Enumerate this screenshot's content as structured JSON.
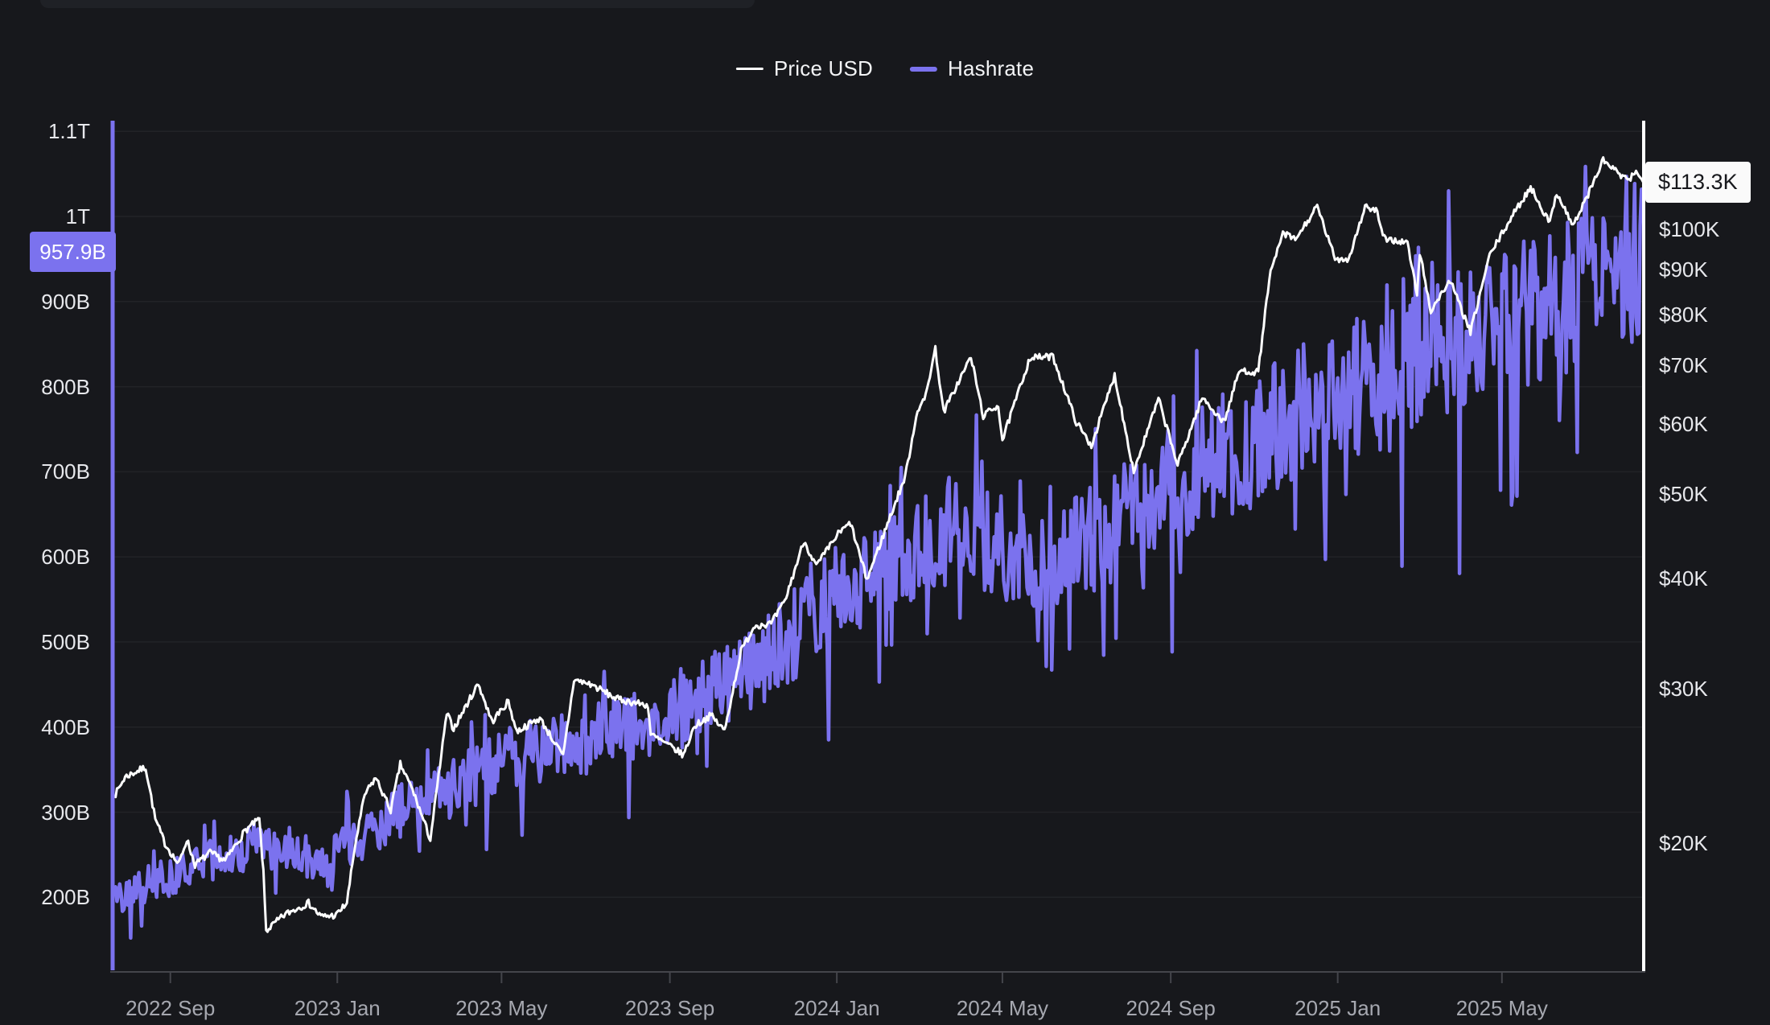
{
  "page": {
    "background": "#17181c",
    "top_strip_color": "#1f2126"
  },
  "legend": {
    "items": [
      {
        "label": "Price USD",
        "color": "#ffffff"
      },
      {
        "label": "Hashrate",
        "color": "#7b72ee"
      }
    ]
  },
  "chart_data": {
    "type": "line",
    "title": "",
    "x_axis": {
      "start": "2022-07-22",
      "end": "2025-08-12",
      "ticks": [
        {
          "label": "2022 Sep",
          "date": "2022-09-01"
        },
        {
          "label": "2023 Jan",
          "date": "2023-01-01"
        },
        {
          "label": "2023 May",
          "date": "2023-05-01"
        },
        {
          "label": "2023 Sep",
          "date": "2023-09-01"
        },
        {
          "label": "2024 Jan",
          "date": "2024-01-01"
        },
        {
          "label": "2024 May",
          "date": "2024-05-01"
        },
        {
          "label": "2024 Sep",
          "date": "2024-09-01"
        },
        {
          "label": "2025 Jan",
          "date": "2025-01-01"
        },
        {
          "label": "2025 May",
          "date": "2025-05-01"
        }
      ]
    },
    "left_axis": {
      "series": "Hashrate",
      "scale": "linear",
      "unit": "GH/s",
      "ticks": [
        {
          "label": "1.1T",
          "value": 1100
        },
        {
          "label": "1T",
          "value": 1000
        },
        {
          "label": "900B",
          "value": 900
        },
        {
          "label": "800B",
          "value": 800
        },
        {
          "label": "700B",
          "value": 700
        },
        {
          "label": "600B",
          "value": 600
        },
        {
          "label": "500B",
          "value": 500
        },
        {
          "label": "400B",
          "value": 400
        },
        {
          "label": "300B",
          "value": 300
        },
        {
          "label": "200B",
          "value": 200
        }
      ],
      "badge": {
        "label": "957.9B",
        "value": 957.9,
        "color": "#7b72ee"
      }
    },
    "right_axis": {
      "series": "Price USD",
      "scale": "log",
      "unit": "USD",
      "ticks": [
        {
          "label": "$100K",
          "value": 100000
        },
        {
          "label": "$90K",
          "value": 90000
        },
        {
          "label": "$80K",
          "value": 80000
        },
        {
          "label": "$70K",
          "value": 70000
        },
        {
          "label": "$60K",
          "value": 60000
        },
        {
          "label": "$50K",
          "value": 50000
        },
        {
          "label": "$40K",
          "value": 40000
        },
        {
          "label": "$30K",
          "value": 30000
        },
        {
          "label": "$20K",
          "value": 20000
        }
      ],
      "badge": {
        "label": "$113.3K",
        "value": 113300,
        "color": "#fafafa"
      }
    },
    "series": [
      {
        "name": "Price USD",
        "color": "#ffffff",
        "axis": "right",
        "stroke_width": 3,
        "jitter_pct": 0.9,
        "seed": 7,
        "points": [
          [
            "2022-07-22",
            22600
          ],
          [
            "2022-07-30",
            23800
          ],
          [
            "2022-08-14",
            24400
          ],
          [
            "2022-08-21",
            21300
          ],
          [
            "2022-08-28",
            20000
          ],
          [
            "2022-09-07",
            18900
          ],
          [
            "2022-09-13",
            20200
          ],
          [
            "2022-09-19",
            18900
          ],
          [
            "2022-09-30",
            19500
          ],
          [
            "2022-10-11",
            19100
          ],
          [
            "2022-10-26",
            20700
          ],
          [
            "2022-11-05",
            21300
          ],
          [
            "2022-11-08",
            18500
          ],
          [
            "2022-11-10",
            15900
          ],
          [
            "2022-11-24",
            16600
          ],
          [
            "2022-12-11",
            17100
          ],
          [
            "2022-12-20",
            16500
          ],
          [
            "2022-12-31",
            16550
          ],
          [
            "2023-01-08",
            17100
          ],
          [
            "2023-01-14",
            19900
          ],
          [
            "2023-01-21",
            22700
          ],
          [
            "2023-01-29",
            23750
          ],
          [
            "2023-02-09",
            21800
          ],
          [
            "2023-02-16",
            24600
          ],
          [
            "2023-02-25",
            23000
          ],
          [
            "2023-03-10",
            20200
          ],
          [
            "2023-03-22",
            28100
          ],
          [
            "2023-03-27",
            27000
          ],
          [
            "2023-04-14",
            30400
          ],
          [
            "2023-04-24",
            27500
          ],
          [
            "2023-05-06",
            29000
          ],
          [
            "2023-05-12",
            26800
          ],
          [
            "2023-05-29",
            27750
          ],
          [
            "2023-06-15",
            25100
          ],
          [
            "2023-06-23",
            30700
          ],
          [
            "2023-07-06",
            30300
          ],
          [
            "2023-07-24",
            29200
          ],
          [
            "2023-08-16",
            28700
          ],
          [
            "2023-08-18",
            26600
          ],
          [
            "2023-09-01",
            25800
          ],
          [
            "2023-09-11",
            25200
          ],
          [
            "2023-09-19",
            27200
          ],
          [
            "2023-10-01",
            27970
          ],
          [
            "2023-10-11",
            26850
          ],
          [
            "2023-10-23",
            33100
          ],
          [
            "2023-11-02",
            35400
          ],
          [
            "2023-11-14",
            35550
          ],
          [
            "2023-11-24",
            37700
          ],
          [
            "2023-12-08",
            44200
          ],
          [
            "2023-12-17",
            41350
          ],
          [
            "2024-01-02",
            45000
          ],
          [
            "2024-01-11",
            46300
          ],
          [
            "2024-01-23",
            39900
          ],
          [
            "2024-02-09",
            47100
          ],
          [
            "2024-02-20",
            52300
          ],
          [
            "2024-02-29",
            62400
          ],
          [
            "2024-03-05",
            63800
          ],
          [
            "2024-03-13",
            73100
          ],
          [
            "2024-03-19",
            61900
          ],
          [
            "2024-04-08",
            71600
          ],
          [
            "2024-04-17",
            61300
          ],
          [
            "2024-04-28",
            63100
          ],
          [
            "2024-05-01",
            57500
          ],
          [
            "2024-05-21",
            71400
          ],
          [
            "2024-06-07",
            71600
          ],
          [
            "2024-06-24",
            60300
          ],
          [
            "2024-07-05",
            56700
          ],
          [
            "2024-07-22",
            68200
          ],
          [
            "2024-08-05",
            53000
          ],
          [
            "2024-08-23",
            64100
          ],
          [
            "2024-09-06",
            53900
          ],
          [
            "2024-09-24",
            64300
          ],
          [
            "2024-10-10",
            60300
          ],
          [
            "2024-10-21",
            69000
          ],
          [
            "2024-11-04",
            68800
          ],
          [
            "2024-11-12",
            88000
          ],
          [
            "2024-11-22",
            99000
          ],
          [
            "2024-12-01",
            97300
          ],
          [
            "2024-12-17",
            106100
          ],
          [
            "2024-12-30",
            92600
          ],
          [
            "2025-01-09",
            92500
          ],
          [
            "2025-01-21",
            106150
          ],
          [
            "2025-01-30",
            104700
          ],
          [
            "2025-02-03",
            97700
          ],
          [
            "2025-02-21",
            96500
          ],
          [
            "2025-02-28",
            84300
          ],
          [
            "2025-03-02",
            94200
          ],
          [
            "2025-03-10",
            80700
          ],
          [
            "2025-03-24",
            87500
          ],
          [
            "2025-04-08",
            76300
          ],
          [
            "2025-04-22",
            93400
          ],
          [
            "2025-05-08",
            103200
          ],
          [
            "2025-05-22",
            111700
          ],
          [
            "2025-06-05",
            101600
          ],
          [
            "2025-06-10",
            110300
          ],
          [
            "2025-06-22",
            100900
          ],
          [
            "2025-07-03",
            109600
          ],
          [
            "2025-07-14",
            119900
          ],
          [
            "2025-07-25",
            115800
          ],
          [
            "2025-08-01",
            113450
          ],
          [
            "2025-08-08",
            116500
          ],
          [
            "2025-08-12",
            113300
          ]
        ]
      },
      {
        "name": "Hashrate",
        "color": "#7b72ee",
        "axis": "left",
        "stroke_width": 4.5,
        "seed": 42,
        "noise": {
          "amplitude_pct": 10.5,
          "dip_chance": 0.055,
          "dip_extra_pct": 17,
          "spike_chance": 0.05,
          "spike_extra_pct": 9
        },
        "points": [
          [
            "2022-07-22",
            205
          ],
          [
            "2022-08-01",
            205
          ],
          [
            "2022-09-01",
            225
          ],
          [
            "2022-10-01",
            245
          ],
          [
            "2022-11-01",
            260
          ],
          [
            "2022-12-01",
            255
          ],
          [
            "2022-12-25",
            235
          ],
          [
            "2023-01-01",
            255
          ],
          [
            "2023-02-01",
            285
          ],
          [
            "2023-03-01",
            315
          ],
          [
            "2023-04-01",
            335
          ],
          [
            "2023-05-01",
            360
          ],
          [
            "2023-06-01",
            375
          ],
          [
            "2023-07-01",
            385
          ],
          [
            "2023-08-01",
            400
          ],
          [
            "2023-09-01",
            415
          ],
          [
            "2023-10-01",
            440
          ],
          [
            "2023-11-01",
            465
          ],
          [
            "2023-12-01",
            510
          ],
          [
            "2024-01-01",
            555
          ],
          [
            "2024-02-01",
            580
          ],
          [
            "2024-03-01",
            605
          ],
          [
            "2024-04-01",
            640
          ],
          [
            "2024-05-01",
            615
          ],
          [
            "2024-06-01",
            595
          ],
          [
            "2024-07-01",
            615
          ],
          [
            "2024-08-01",
            645
          ],
          [
            "2024-09-01",
            680
          ],
          [
            "2024-10-01",
            710
          ],
          [
            "2024-11-01",
            735
          ],
          [
            "2024-12-01",
            765
          ],
          [
            "2025-01-01",
            790
          ],
          [
            "2025-02-01",
            810
          ],
          [
            "2025-03-01",
            835
          ],
          [
            "2025-04-01",
            855
          ],
          [
            "2025-05-01",
            875
          ],
          [
            "2025-06-01",
            885
          ],
          [
            "2025-07-01",
            925
          ],
          [
            "2025-08-12",
            958
          ]
        ]
      }
    ],
    "style": {
      "grid_color": "rgba(255,255,255,0.05)",
      "axis_line_color": "#44454b",
      "left_axis_line_color": "#7b72ee",
      "right_axis_line_color": "#ffffff",
      "tick_label_color": "#e7e8ec",
      "date_label_color": "#a6a8b0",
      "grid": true,
      "legend_position": "top-center"
    }
  }
}
